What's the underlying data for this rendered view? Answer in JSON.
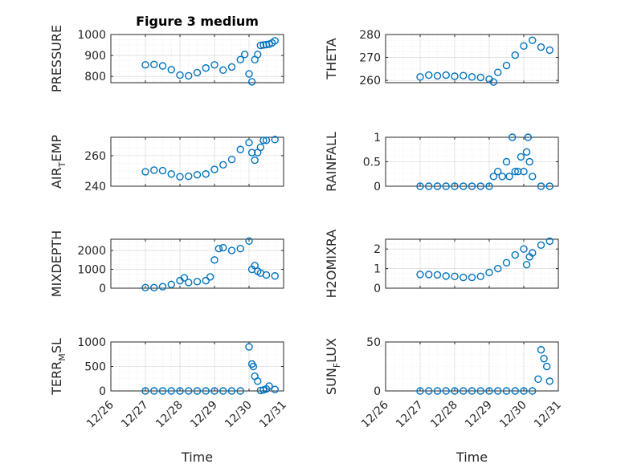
{
  "chart_data": [
    {
      "type": "scatter",
      "title": "Figure 3 medium",
      "ylabel": "PRESSURE",
      "xlabel": "",
      "ylim": [
        770,
        1000
      ],
      "yticks": [
        800,
        900,
        1000
      ],
      "xlim": [
        "2013-12-26",
        "2013-12-31"
      ],
      "xticks": [
        "12/26",
        "12/27",
        "12/28",
        "12/29",
        "12/30",
        "12/31"
      ],
      "x": [
        "12/27 00:00",
        "12/27 06:00",
        "12/27 12:00",
        "12/27 18:00",
        "12/28 00:00",
        "12/28 06:00",
        "12/28 12:00",
        "12/28 18:00",
        "12/29 00:00",
        "12/29 06:00",
        "12/29 12:00",
        "12/29 18:00",
        "12/29 21:00",
        "12/30 00:00",
        "12/30 02:00",
        "12/30 04:00",
        "12/30 06:00",
        "12/30 08:00",
        "12/30 10:00",
        "12/30 12:00",
        "12/30 14:00",
        "12/30 16:00",
        "12/30 18:00"
      ],
      "y": [
        855,
        857,
        850,
        832,
        806,
        803,
        818,
        840,
        855,
        830,
        845,
        880,
        905,
        812,
        774,
        880,
        905,
        948,
        950,
        952,
        954,
        960,
        970
      ]
    },
    {
      "type": "scatter",
      "title": "",
      "ylabel": "THETA",
      "xlabel": "",
      "ylim": [
        259,
        280
      ],
      "yticks": [
        260,
        270,
        280
      ],
      "xlim": [
        "2013-12-26",
        "2013-12-31"
      ],
      "xticks": [
        "12/26",
        "12/27",
        "12/28",
        "12/29",
        "12/30",
        "12/31"
      ],
      "x": [
        "12/27 00:00",
        "12/27 06:00",
        "12/27 12:00",
        "12/27 18:00",
        "12/28 00:00",
        "12/28 06:00",
        "12/28 12:00",
        "12/28 18:00",
        "12/29 00:00",
        "12/29 03:00",
        "12/29 06:00",
        "12/29 12:00",
        "12/29 18:00",
        "12/30 00:00",
        "12/30 06:00",
        "12/30 12:00",
        "12/30 18:00"
      ],
      "y": [
        261.5,
        262.3,
        262.0,
        262.3,
        261.8,
        262.1,
        261.5,
        261.3,
        260.5,
        259.3,
        263.5,
        266.5,
        271,
        275,
        277.5,
        274.5,
        273.2
      ]
    },
    {
      "type": "scatter",
      "title": "",
      "ylabel": "AIR_TEMP",
      "xlabel": "",
      "ylim": [
        240,
        272
      ],
      "yticks": [
        240,
        260
      ],
      "xlim": [
        "2013-12-26",
        "2013-12-31"
      ],
      "xticks": [
        "12/26",
        "12/27",
        "12/28",
        "12/29",
        "12/30",
        "12/31"
      ],
      "x": [
        "12/27 00:00",
        "12/27 06:00",
        "12/27 12:00",
        "12/27 18:00",
        "12/28 00:00",
        "12/28 06:00",
        "12/28 12:00",
        "12/28 18:00",
        "12/29 00:00",
        "12/29 06:00",
        "12/29 12:00",
        "12/29 18:00",
        "12/30 00:00",
        "12/30 02:00",
        "12/30 04:00",
        "12/30 06:00",
        "12/30 08:00",
        "12/30 10:00",
        "12/30 12:00",
        "12/30 18:00"
      ],
      "y": [
        249.5,
        250.5,
        250.2,
        248.0,
        246.2,
        246.5,
        247.5,
        248.0,
        251.0,
        254.0,
        257.5,
        264.0,
        268.5,
        262.0,
        257.0,
        262.0,
        265.5,
        270.0,
        270.0,
        270.5
      ]
    },
    {
      "type": "scatter",
      "title": "",
      "ylabel": "RAINFALL",
      "xlabel": "",
      "ylim": [
        0,
        1
      ],
      "yticks": [
        0,
        0.5,
        1
      ],
      "xlim": [
        "2013-12-26",
        "2013-12-31"
      ],
      "xticks": [
        "12/26",
        "12/27",
        "12/28",
        "12/29",
        "12/30",
        "12/31"
      ],
      "x": [
        "12/27 00:00",
        "12/27 06:00",
        "12/27 12:00",
        "12/27 18:00",
        "12/28 00:00",
        "12/28 06:00",
        "12/28 12:00",
        "12/28 18:00",
        "12/29 00:00",
        "12/29 03:00",
        "12/29 06:00",
        "12/29 09:00",
        "12/29 12:00",
        "12/29 14:00",
        "12/29 16:00",
        "12/29 18:00",
        "12/29 20:00",
        "12/29 22:00",
        "12/30 00:00",
        "12/30 02:00",
        "12/30 03:00",
        "12/30 04:00",
        "12/30 06:00",
        "12/30 12:00",
        "12/30 18:00"
      ],
      "y": [
        0,
        0,
        0,
        0,
        0,
        0,
        0,
        0,
        0,
        0.2,
        0.3,
        0.2,
        0.5,
        0.2,
        1.0,
        0.3,
        0.3,
        0.6,
        0.3,
        0.7,
        1.0,
        0.5,
        0.2,
        0,
        0
      ]
    },
    {
      "type": "scatter",
      "title": "",
      "ylabel": "MIXDEPTH",
      "xlabel": "",
      "ylim": [
        0,
        2600
      ],
      "yticks": [
        0,
        1000,
        2000
      ],
      "xlim": [
        "2013-12-26",
        "2013-12-31"
      ],
      "xticks": [
        "12/26",
        "12/27",
        "12/28",
        "12/29",
        "12/30",
        "12/31"
      ],
      "x": [
        "12/27 00:00",
        "12/27 06:00",
        "12/27 12:00",
        "12/27 18:00",
        "12/28 00:00",
        "12/28 03:00",
        "12/28 06:00",
        "12/28 12:00",
        "12/28 18:00",
        "12/28 21:00",
        "12/29 00:00",
        "12/29 03:00",
        "12/29 06:00",
        "12/29 12:00",
        "12/29 18:00",
        "12/30 00:00",
        "12/30 02:00",
        "12/30 04:00",
        "12/30 06:00",
        "12/30 08:00",
        "12/30 12:00",
        "12/30 18:00"
      ],
      "y": [
        30,
        30,
        80,
        200,
        400,
        550,
        300,
        350,
        400,
        600,
        1500,
        2100,
        2150,
        2000,
        2100,
        2500,
        1000,
        1200,
        900,
        800,
        700,
        650
      ]
    },
    {
      "type": "scatter",
      "title": "",
      "ylabel": "H2OMIXRA",
      "xlabel": "",
      "ylim": [
        0,
        2.5
      ],
      "yticks": [
        0,
        1,
        2
      ],
      "xlim": [
        "2013-12-26",
        "2013-12-31"
      ],
      "xticks": [
        "12/26",
        "12/27",
        "12/28",
        "12/29",
        "12/30",
        "12/31"
      ],
      "x": [
        "12/27 00:00",
        "12/27 06:00",
        "12/27 12:00",
        "12/27 18:00",
        "12/28 00:00",
        "12/28 06:00",
        "12/28 12:00",
        "12/28 18:00",
        "12/29 00:00",
        "12/29 06:00",
        "12/29 12:00",
        "12/29 18:00",
        "12/30 00:00",
        "12/30 02:00",
        "12/30 04:00",
        "12/30 06:00",
        "12/30 12:00",
        "12/30 18:00"
      ],
      "y": [
        0.7,
        0.7,
        0.68,
        0.62,
        0.6,
        0.55,
        0.55,
        0.6,
        0.8,
        1.0,
        1.3,
        1.7,
        2.0,
        1.2,
        1.6,
        1.8,
        2.2,
        2.4
      ]
    },
    {
      "type": "scatter",
      "title": "",
      "ylabel": "TERR_MSL",
      "xlabel": "Time",
      "ylim": [
        0,
        1000
      ],
      "yticks": [
        0,
        500,
        1000
      ],
      "xlim": [
        "2013-12-26",
        "2013-12-31"
      ],
      "xticks": [
        "12/26",
        "12/27",
        "12/28",
        "12/29",
        "12/30",
        "12/31"
      ],
      "x": [
        "12/27 00:00",
        "12/27 06:00",
        "12/27 12:00",
        "12/27 18:00",
        "12/28 00:00",
        "12/28 06:00",
        "12/28 12:00",
        "12/28 18:00",
        "12/29 00:00",
        "12/29 06:00",
        "12/29 12:00",
        "12/29 18:00",
        "12/30 00:00",
        "12/30 02:00",
        "12/30 03:00",
        "12/30 04:00",
        "12/30 06:00",
        "12/30 08:00",
        "12/30 10:00",
        "12/30 12:00",
        "12/30 14:00",
        "12/30 18:00"
      ],
      "y": [
        0,
        0,
        0,
        0,
        0,
        0,
        0,
        0,
        0,
        0,
        0,
        0,
        900,
        550,
        500,
        300,
        200,
        10,
        20,
        40,
        100,
        30
      ]
    },
    {
      "type": "scatter",
      "title": "",
      "ylabel": "SUN_FLUX",
      "xlabel": "Time",
      "ylim": [
        0,
        50
      ],
      "yticks": [
        0,
        50
      ],
      "xlim": [
        "2013-12-26",
        "2013-12-31"
      ],
      "xticks": [
        "12/26",
        "12/27",
        "12/28",
        "12/29",
        "12/30",
        "12/31"
      ],
      "x": [
        "12/27 00:00",
        "12/27 06:00",
        "12/27 12:00",
        "12/27 18:00",
        "12/28 00:00",
        "12/28 06:00",
        "12/28 12:00",
        "12/28 18:00",
        "12/29 00:00",
        "12/29 06:00",
        "12/29 12:00",
        "12/29 18:00",
        "12/30 00:00",
        "12/30 06:00",
        "12/30 10:00",
        "12/30 12:00",
        "12/30 14:00",
        "12/30 16:00",
        "12/30 18:00"
      ],
      "y": [
        0,
        0,
        0,
        0,
        0,
        0,
        0,
        0,
        0,
        0,
        0,
        0,
        0,
        0,
        12,
        42,
        33,
        25,
        10
      ]
    }
  ],
  "style": {
    "marker_color": "#0072bd",
    "marker": "open-circle"
  }
}
